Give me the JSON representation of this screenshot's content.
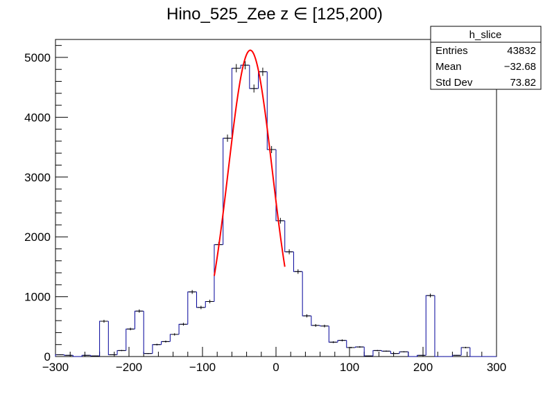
{
  "chart_data": {
    "type": "bar",
    "style": "step-histogram",
    "title": "Hino_525_Zee z  ∈ [125,200)",
    "xlabel": "",
    "ylabel": "",
    "xlim": [
      -300,
      300
    ],
    "ylim": [
      0,
      5300
    ],
    "grid": false,
    "x_ticks": [
      -300,
      -200,
      -100,
      0,
      100,
      200,
      300
    ],
    "x_tick_labels": [
      "−300",
      "−200",
      "−100",
      "0",
      "100",
      "200",
      "300"
    ],
    "y_ticks": [
      0,
      1000,
      2000,
      3000,
      4000,
      5000
    ],
    "y_tick_labels": [
      "0",
      "1000",
      "2000",
      "3000",
      "4000",
      "5000"
    ],
    "bin_edges": [
      -300,
      -288,
      -276,
      -264,
      -252,
      -240,
      -228,
      -216,
      -204,
      -192,
      -180,
      -168,
      -156,
      -144,
      -132,
      -120,
      -108,
      -96,
      -84,
      -72,
      -60,
      -48,
      -36,
      -24,
      -12,
      0,
      12,
      24,
      36,
      48,
      60,
      72,
      84,
      96,
      108,
      120,
      132,
      144,
      156,
      168,
      180,
      192,
      204,
      216,
      228,
      240,
      252,
      264,
      276,
      288,
      300
    ],
    "series": [
      {
        "name": "h_slice",
        "color": "#000099",
        "values": [
          30,
          20,
          0,
          20,
          10,
          590,
          30,
          100,
          460,
          760,
          50,
          200,
          250,
          370,
          540,
          1080,
          820,
          920,
          1870,
          3650,
          4820,
          4870,
          4480,
          4760,
          3460,
          2270,
          1750,
          1420,
          680,
          520,
          510,
          240,
          270,
          150,
          160,
          10,
          100,
          90,
          50,
          80,
          0,
          20,
          1020,
          0,
          0,
          20,
          150,
          0,
          0,
          0
        ]
      }
    ],
    "fit": {
      "type": "gaussian",
      "color": "#ff0000",
      "amplitude": 5120,
      "mean": -35,
      "sigma": 30,
      "x_range": [
        -84,
        12
      ]
    },
    "legend": {
      "placement": "top-right",
      "title": "h_slice",
      "rows": [
        {
          "label": "Entries",
          "value": "43832"
        },
        {
          "label": "Mean",
          "value": "−32.68"
        },
        {
          "label": "Std Dev",
          "value": "73.82"
        }
      ]
    }
  }
}
